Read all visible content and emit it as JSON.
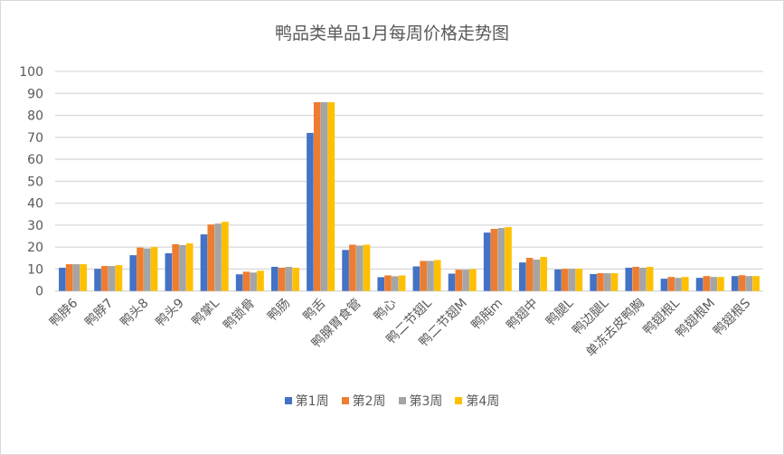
{
  "chart_data": {
    "type": "bar",
    "title": "鸭品类单品1月每周价格走势图",
    "xlabel": "",
    "ylabel": "",
    "ylim": [
      0,
      100
    ],
    "yticks": [
      0,
      10,
      20,
      30,
      40,
      50,
      60,
      70,
      80,
      90,
      100
    ],
    "grid": true,
    "legend_position": "bottom",
    "categories": [
      "鸭脖6",
      "鸭脖7",
      "鸭头8",
      "鸭头9",
      "鸭掌L",
      "鸭锁骨",
      "鸭肠",
      "鸭舌",
      "鸭腺胃食管",
      "鸭心",
      "鸭二节翅L",
      "鸭二节翅M",
      "鸭肫m",
      "鸭翅中",
      "鸭腿L",
      "鸭边腿L",
      "单冻去皮鸭胸",
      "鸭翅根L",
      "鸭翅根M",
      "鸭翅根S"
    ],
    "series": [
      {
        "name": "第1周",
        "color": "#4472c4",
        "values": [
          10.6,
          10.1,
          16.3,
          17.2,
          25.8,
          7.6,
          11.0,
          72.0,
          18.7,
          6.3,
          11.2,
          7.9,
          26.6,
          13.0,
          9.8,
          7.7,
          10.6,
          5.6,
          6.0,
          6.8
        ]
      },
      {
        "name": "第2周",
        "color": "#ed7d31",
        "values": [
          12.2,
          11.4,
          19.8,
          21.3,
          30.3,
          8.8,
          10.6,
          86.0,
          21.1,
          7.1,
          13.7,
          9.7,
          28.3,
          15.1,
          10.1,
          8.1,
          11.0,
          6.4,
          6.8,
          7.2
        ]
      },
      {
        "name": "第3周",
        "color": "#a5a5a5",
        "values": [
          12.2,
          11.4,
          19.4,
          20.9,
          30.7,
          8.4,
          11.0,
          86.0,
          20.7,
          6.7,
          13.7,
          9.7,
          28.7,
          14.3,
          10.1,
          8.1,
          10.6,
          6.0,
          6.4,
          6.8
        ]
      },
      {
        "name": "第4周",
        "color": "#ffc000",
        "values": [
          12.2,
          11.8,
          20.0,
          21.7,
          31.5,
          9.2,
          10.6,
          86.0,
          21.1,
          7.1,
          14.1,
          10.0,
          29.1,
          15.5,
          10.1,
          8.1,
          11.0,
          6.4,
          6.4,
          6.8
        ]
      }
    ]
  },
  "legend": {
    "items": [
      {
        "label": "第1周",
        "color": "#4472c4"
      },
      {
        "label": "第2周",
        "color": "#ed7d31"
      },
      {
        "label": "第3周",
        "color": "#a5a5a5"
      },
      {
        "label": "第4周",
        "color": "#ffc000"
      }
    ]
  }
}
